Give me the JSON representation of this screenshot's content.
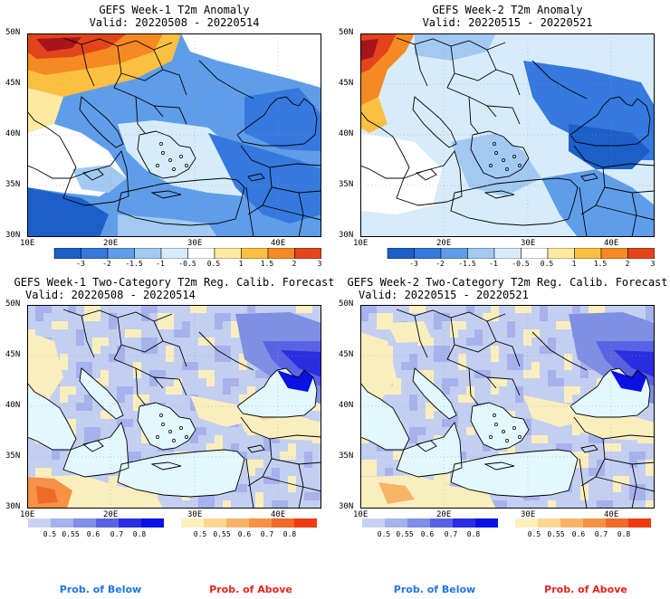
{
  "panels": [
    {
      "title_line1": "GEFS Week-1 T2m Anomaly",
      "title_line2": "Valid: 20220508 - 20220514",
      "type": "anomaly"
    },
    {
      "title_line1": "GEFS Week-2 T2m Anomaly",
      "title_line2": "Valid: 20220515 - 20220521",
      "type": "anomaly"
    },
    {
      "title_line1": "GEFS Week-1 Two-Category T2m Reg. Calib. Forecast",
      "title_line2": "Valid: 20220508 - 20220514",
      "type": "probability"
    },
    {
      "title_line1": "GEFS Week-2 Two-Category T2m Reg. Calib. Forecast",
      "title_line2": "Valid: 20220515 - 20220521",
      "type": "probability"
    }
  ],
  "lat_labels": [
    "50N",
    "45N",
    "40N",
    "35N",
    "30N"
  ],
  "lon_labels": [
    "10E",
    "20E",
    "30E",
    "40E"
  ],
  "anomaly_colorbar": {
    "ticks": [
      "-3",
      "-2",
      "-1.5",
      "-1",
      "-0.5",
      "0.5",
      "1",
      "1.5",
      "2",
      "3"
    ],
    "colors": [
      "#1c5fc9",
      "#3579de",
      "#5f9de9",
      "#a2c9f2",
      "#d7ecfa",
      "#ffffff",
      "#ffeaa0",
      "#fcc041",
      "#f58a23",
      "#e2451b",
      "#a8141b"
    ]
  },
  "prob_below": {
    "ticks": [
      "0.5",
      "0.55",
      "0.6",
      "0.7",
      "0.8"
    ],
    "colors": [
      "#c9d1f2",
      "#a6b2ec",
      "#7f8fe3",
      "#5a62e4",
      "#2a2ee0",
      "#0a11e2"
    ],
    "label": "Prob. of Below",
    "label_color": "#1f77e4"
  },
  "prob_above": {
    "ticks": [
      "0.5",
      "0.55",
      "0.6",
      "0.7",
      "0.8"
    ],
    "colors": [
      "#fff0bd",
      "#fbd891",
      "#f8b466",
      "#f59245",
      "#f06a28",
      "#ef3a12"
    ],
    "label": "Prob. of Above",
    "label_color": "#e8231d"
  },
  "colors": {
    "sea": "#e2f8fc",
    "land_blue": "#c3cff1",
    "land_yellow": "#fbeebe",
    "coast": "#000000"
  }
}
